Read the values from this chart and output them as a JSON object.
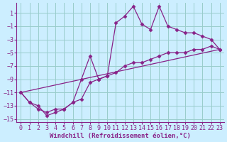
{
  "line1_x": [
    0,
    1,
    2,
    3,
    4,
    5,
    6,
    7,
    8,
    9,
    10,
    11,
    12,
    13,
    14,
    15,
    16,
    17,
    18,
    19,
    20,
    21,
    22,
    23
  ],
  "line1_y": [
    -11.0,
    -12.5,
    -13.0,
    -14.5,
    -14.0,
    -13.5,
    -12.5,
    -9.0,
    -5.5,
    -9.0,
    -8.5,
    -0.5,
    0.5,
    2.0,
    -0.7,
    -1.5,
    2.0,
    -1.0,
    -1.5,
    -2.0,
    -2.0,
    -2.5,
    -3.0,
    -4.5
  ],
  "line2_x": [
    0,
    1,
    2,
    3,
    4,
    5,
    6,
    7,
    8,
    9,
    10,
    11,
    12,
    13,
    14,
    15,
    16,
    17,
    18,
    19,
    20,
    21,
    22,
    23
  ],
  "line2_y": [
    -11.0,
    -12.5,
    -13.5,
    -14.0,
    -13.5,
    -13.5,
    -12.5,
    -12.0,
    -9.5,
    -9.0,
    -8.5,
    -8.0,
    -7.0,
    -6.5,
    -6.5,
    -6.0,
    -5.5,
    -5.0,
    -5.0,
    -5.0,
    -4.5,
    -4.5,
    -4.0,
    -4.5
  ],
  "line3_x": [
    0,
    23
  ],
  "line3_y": [
    -11.0,
    -4.5
  ],
  "line_color": "#882288",
  "marker": "D",
  "marker_size": 2.5,
  "background_color": "#cceeff",
  "grid_color": "#99cccc",
  "xlabel": "Windchill (Refroidissement éolien,°C)",
  "xlim": [
    -0.5,
    23.5
  ],
  "ylim": [
    -15.5,
    2.5
  ],
  "yticks": [
    1,
    -1,
    -3,
    -5,
    -7,
    -9,
    -11,
    -13,
    -15
  ],
  "xticks": [
    0,
    1,
    2,
    3,
    4,
    5,
    6,
    7,
    8,
    9,
    10,
    11,
    12,
    13,
    14,
    15,
    16,
    17,
    18,
    19,
    20,
    21,
    22,
    23
  ],
  "line_width": 0.9,
  "xlabel_fontsize": 6.5,
  "tick_fontsize": 6
}
